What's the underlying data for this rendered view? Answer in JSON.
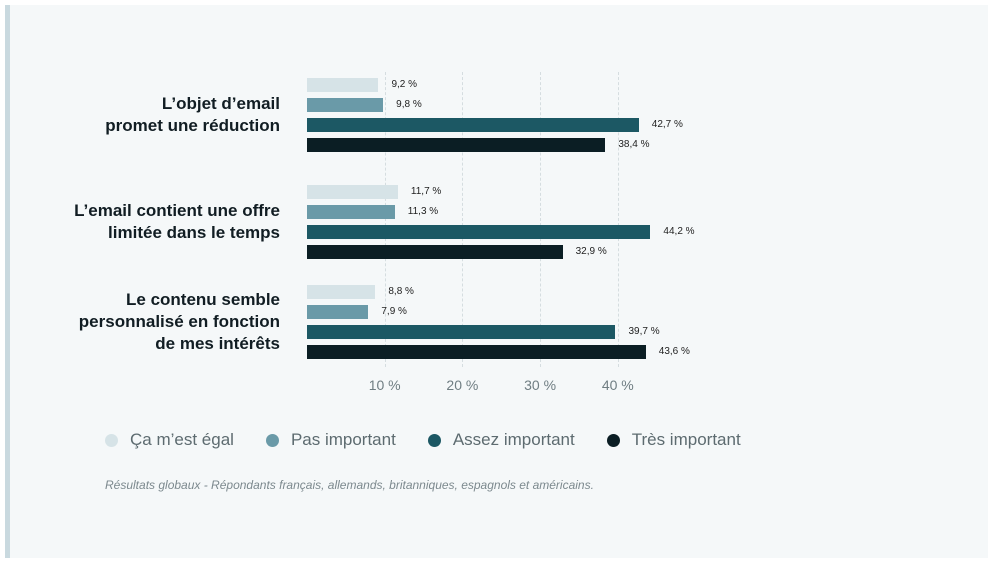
{
  "colors": {
    "ca_m_est_egal": "#d6e3e7",
    "pas_important": "#6a9aa8",
    "assez_important": "#1c5864",
    "tres_important": "#0b1e24"
  },
  "chart_data": {
    "type": "bar",
    "orientation": "horizontal",
    "categories": [
      "L’objet d’email promet une réduction",
      "L’email contient une offre limitée dans le temps",
      "Le contenu semble personnalisé en fonction de mes intérêts"
    ],
    "category_lines": [
      [
        "L’objet d’email",
        "promet une réduction"
      ],
      [
        "L’email contient une offre",
        "limitée dans le temps"
      ],
      [
        "Le contenu semble",
        "personnalisé en fonction",
        "de mes intérêts"
      ]
    ],
    "series": [
      {
        "name": "Ça m’est égal",
        "color": "#d6e3e7",
        "values": [
          9.2,
          11.7,
          8.8
        ],
        "labels": [
          "9,2 %",
          "11,7 %",
          "8,8 %"
        ]
      },
      {
        "name": "Pas important",
        "color": "#6a9aa8",
        "values": [
          9.8,
          11.3,
          7.9
        ],
        "labels": [
          "9,8 %",
          "11,3 %",
          "7,9 %"
        ]
      },
      {
        "name": "Assez important",
        "color": "#1c5864",
        "values": [
          42.7,
          44.2,
          39.7
        ],
        "labels": [
          "42,7 %",
          "44,2 %",
          "39,7 %"
        ]
      },
      {
        "name": "Très important",
        "color": "#0b1e24",
        "values": [
          38.4,
          32.9,
          43.6
        ],
        "labels": [
          "38,4 %",
          "32,9 %",
          "43,6 %"
        ]
      }
    ],
    "x_ticks": [
      10,
      20,
      30,
      40
    ],
    "x_tick_labels": [
      "10 %",
      "20 %",
      "30 %",
      "40 %"
    ],
    "xlim": [
      0,
      45
    ],
    "grid": "vertical dashed",
    "legend_position": "bottom",
    "note": "Résultats globaux - Répondants français, allemands, britanniques, espagnols et américains."
  }
}
